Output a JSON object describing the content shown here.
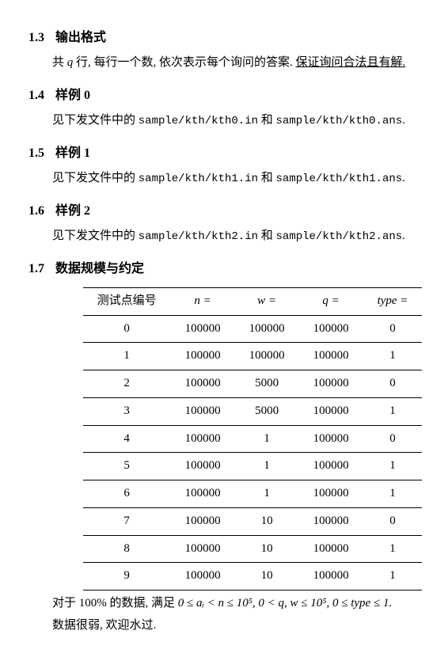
{
  "sections": {
    "s13": {
      "num": "1.3",
      "title": "输出格式"
    },
    "s14": {
      "num": "1.4",
      "title": "样例 0"
    },
    "s15": {
      "num": "1.5",
      "title": "样例 1"
    },
    "s16": {
      "num": "1.6",
      "title": "样例 2"
    },
    "s17": {
      "num": "1.7",
      "title": "数据规模与约定"
    }
  },
  "output_desc": {
    "pre": "共 ",
    "q": "q",
    "mid": " 行, 每行一个数, 依次表示每个询问的答案. ",
    "underline": "保证询问合法且有解."
  },
  "samples": {
    "prefix": "见下发文件中的 ",
    "and": " 和 ",
    "period": ".",
    "s0_in": "sample/kth/kth0.in",
    "s0_ans": "sample/kth/kth0.ans",
    "s1_in": "sample/kth/kth1.in",
    "s1_ans": "sample/kth/kth1.ans",
    "s2_in": "sample/kth/kth2.in",
    "s2_ans": "sample/kth/kth2.ans"
  },
  "table": {
    "headers": {
      "c0": "测试点编号",
      "c1": "n =",
      "c2": "w =",
      "c3": "q =",
      "c4": "type ="
    },
    "rows": [
      {
        "c0": "0",
        "c1": "100000",
        "c2": "100000",
        "c3": "100000",
        "c4": "0"
      },
      {
        "c0": "1",
        "c1": "100000",
        "c2": "100000",
        "c3": "100000",
        "c4": "1"
      },
      {
        "c0": "2",
        "c1": "100000",
        "c2": "5000",
        "c3": "100000",
        "c4": "0"
      },
      {
        "c0": "3",
        "c1": "100000",
        "c2": "5000",
        "c3": "100000",
        "c4": "1"
      },
      {
        "c0": "4",
        "c1": "100000",
        "c2": "1",
        "c3": "100000",
        "c4": "0"
      },
      {
        "c0": "5",
        "c1": "100000",
        "c2": "1",
        "c3": "100000",
        "c4": "1"
      },
      {
        "c0": "6",
        "c1": "100000",
        "c2": "1",
        "c3": "100000",
        "c4": "1"
      },
      {
        "c0": "7",
        "c1": "100000",
        "c2": "10",
        "c3": "100000",
        "c4": "0"
      },
      {
        "c0": "8",
        "c1": "100000",
        "c2": "10",
        "c3": "100000",
        "c4": "1"
      },
      {
        "c0": "9",
        "c1": "100000",
        "c2": "10",
        "c3": "100000",
        "c4": "1"
      }
    ]
  },
  "footer": {
    "line1_pre": "对于 100% 的数据, 满足 ",
    "line1_math": "0 ≤ aᵢ < n ≤ 10⁵, 0 < q, w ≤ 10⁵, 0 ≤ type ≤ 1.",
    "line2": "数据很弱, 欢迎水过."
  }
}
